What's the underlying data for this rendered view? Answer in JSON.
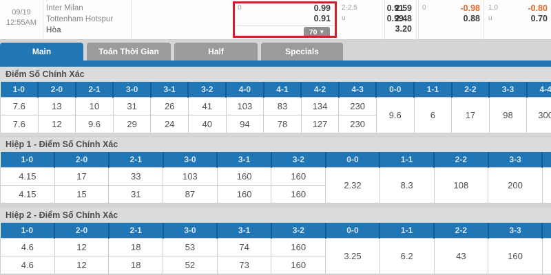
{
  "colors": {
    "accent_blue": "#2176b5",
    "tab_gray": "#9b9b9b",
    "highlight_red": "#cb2129",
    "negative_orange": "#e06a28"
  },
  "match": {
    "date": "09/19",
    "time": "12:55AM",
    "home_team": "Inter Milan",
    "away_team": "Tottenham Hotspur",
    "draw_label": "Hòa",
    "handicap": {
      "line": "0",
      "home_odds": "0.99",
      "away_odds": "0.91",
      "more_markets": "70"
    },
    "total": {
      "line": "2-2.5",
      "over_odds": "0.91",
      "under_label": "u",
      "under_odds": "0.99"
    },
    "one_x_two": {
      "home": "2.59",
      "away": "2.48",
      "draw": "3.20"
    },
    "fh_handicap": {
      "line": "0",
      "home_odds": "-0.98",
      "away_odds": "0.88"
    },
    "fh_total": {
      "line": "1.0",
      "over_odds": "-0.80",
      "under_label": "u",
      "under_odds": "0.70"
    }
  },
  "tabs": [
    {
      "label": "Main"
    },
    {
      "label": "Toán Thời Gian"
    },
    {
      "label": "Half"
    },
    {
      "label": "Specials"
    }
  ],
  "sections": [
    {
      "title": "Điểm Số Chính Xác",
      "score_columns": [
        "1-0",
        "2-0",
        "2-1",
        "3-0",
        "3-1",
        "3-2",
        "4-0",
        "4-1",
        "4-2",
        "4-3"
      ],
      "row1": [
        "7.6",
        "13",
        "10",
        "31",
        "26",
        "41",
        "103",
        "83",
        "134",
        "230"
      ],
      "row2": [
        "7.6",
        "12",
        "9.6",
        "29",
        "24",
        "40",
        "94",
        "78",
        "127",
        "230"
      ],
      "draw_columns": [
        "0-0",
        "1-1",
        "2-2",
        "3-3",
        "4-4"
      ],
      "draw_values": [
        "9.6",
        "6",
        "17",
        "98",
        "300"
      ]
    },
    {
      "title": "Hiệp 1 - Điểm Số Chính Xác",
      "score_columns": [
        "1-0",
        "2-0",
        "2-1",
        "3-0",
        "3-1",
        "3-2"
      ],
      "row1": [
        "4.15",
        "17",
        "33",
        "103",
        "160",
        "160"
      ],
      "row2": [
        "4.15",
        "15",
        "31",
        "87",
        "160",
        "160"
      ],
      "draw_columns": [
        "0-0",
        "1-1",
        "2-2",
        "3-3"
      ],
      "draw_values": [
        "2.32",
        "8.3",
        "108",
        "200"
      ]
    },
    {
      "title": "Hiệp 2 - Điểm Số Chính Xác",
      "score_columns": [
        "1-0",
        "2-0",
        "2-1",
        "3-0",
        "3-1",
        "3-2"
      ],
      "row1": [
        "4.6",
        "12",
        "18",
        "53",
        "74",
        "160"
      ],
      "row2": [
        "4.6",
        "12",
        "18",
        "52",
        "73",
        "160"
      ],
      "draw_columns": [
        "0-0",
        "1-1",
        "2-2",
        "3-3"
      ],
      "draw_values": [
        "3.25",
        "6.2",
        "43",
        "160"
      ]
    }
  ]
}
